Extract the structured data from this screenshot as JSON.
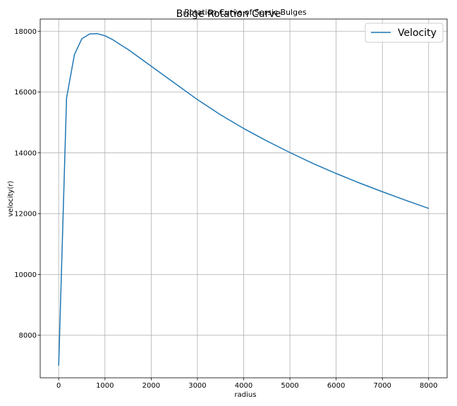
{
  "chart_data": {
    "type": "line",
    "title": "Bulge Rotation Curve",
    "subtitle": "Rotation Curve of Sersic Bulges",
    "xlabel": "radius",
    "ylabel": "velocity(r)",
    "xlim": [
      -400,
      8400
    ],
    "ylim": [
      6600,
      18400
    ],
    "xticks": [
      0,
      1000,
      2000,
      3000,
      4000,
      5000,
      6000,
      7000,
      8000
    ],
    "yticks": [
      8000,
      10000,
      12000,
      14000,
      16000,
      18000
    ],
    "grid": true,
    "legend_position": "top-right",
    "series": [
      {
        "name": "Velocity",
        "color": "#1f77b4",
        "x": [
          0,
          170,
          340,
          500,
          670,
          830,
          1000,
          1170,
          1340,
          1500,
          1700,
          2000,
          2500,
          3000,
          3500,
          4000,
          4500,
          5000,
          5500,
          6000,
          6500,
          7000,
          7500,
          8000
        ],
        "y": [
          7000,
          15800,
          17230,
          17750,
          17910,
          17920,
          17850,
          17720,
          17550,
          17400,
          17180,
          16850,
          16300,
          15750,
          15250,
          14800,
          14390,
          14010,
          13650,
          13320,
          13010,
          12720,
          12440,
          12170
        ]
      }
    ]
  }
}
